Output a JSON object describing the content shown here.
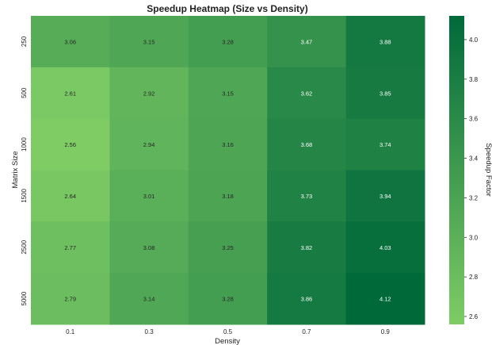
{
  "chart_data": {
    "type": "heatmap",
    "title": "Speedup Heatmap (Size vs Density)",
    "xlabel": "Density",
    "ylabel": "Matrix Size",
    "x_categories": [
      "0.1",
      "0.3",
      "0.5",
      "0.7",
      "0.9"
    ],
    "y_categories": [
      "250",
      "500",
      "1000",
      "1500",
      "2500",
      "5000"
    ],
    "values": [
      [
        3.06,
        3.15,
        3.28,
        3.47,
        3.88
      ],
      [
        2.61,
        2.92,
        3.15,
        3.62,
        3.85
      ],
      [
        2.56,
        2.94,
        3.16,
        3.68,
        3.74
      ],
      [
        2.64,
        3.01,
        3.18,
        3.73,
        3.94
      ],
      [
        2.77,
        3.08,
        3.25,
        3.82,
        4.03
      ],
      [
        2.79,
        3.14,
        3.28,
        3.86,
        4.12
      ]
    ],
    "colorbar": {
      "label": "Speedup Factor",
      "ticks": [
        "2.6",
        "2.8",
        "3.0",
        "3.2",
        "3.4",
        "3.6",
        "3.8",
        "4.0"
      ],
      "range": [
        2.56,
        4.12
      ]
    },
    "colormap": {
      "low": "#7fcc65",
      "high": "#00693a"
    }
  }
}
